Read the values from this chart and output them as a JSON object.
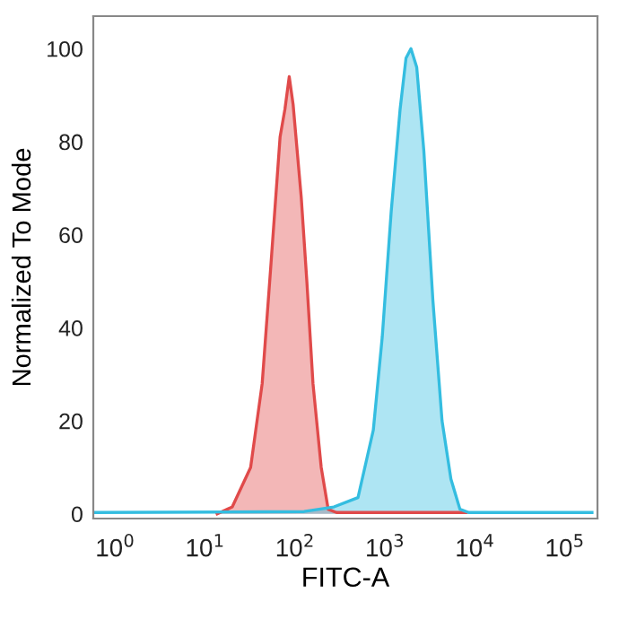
{
  "chart_data": {
    "type": "area",
    "xlabel": "FITC-A",
    "ylabel": "Normalized To Mode",
    "log": "x",
    "xlim": [
      0.57,
      230000
    ],
    "ylim": [
      -1,
      107
    ],
    "xticks": [
      {
        "value": 1,
        "label": "10$^{0}$"
      },
      {
        "value": 10,
        "label": "10$^{1}$"
      },
      {
        "value": 100,
        "label": "10$^{2}$"
      },
      {
        "value": 1000,
        "label": "10$^{3}$"
      },
      {
        "value": 10000,
        "label": "10$^{4}$"
      },
      {
        "value": 100000,
        "label": "10$^{5}$"
      }
    ],
    "yticks": [
      0,
      20,
      40,
      60,
      80,
      100
    ],
    "series": [
      {
        "color": "#e04a4a",
        "x": [
          13.6,
          20,
          32,
          43,
          54,
          68,
          77,
          86,
          95,
          117,
          135,
          158,
          195,
          233,
          288,
          8000
        ],
        "values": [
          0,
          1.5,
          10,
          28,
          54,
          81,
          87,
          94,
          88,
          68,
          50,
          28,
          10,
          1,
          0.3,
          0.3
        ]
      },
      {
        "color": "#34bde0",
        "x": [
          0.6,
          126,
          270,
          500,
          740,
          930,
          1170,
          1470,
          1710,
          1940,
          2250,
          2700,
          3400,
          4300,
          5400,
          6800,
          8500,
          200000
        ],
        "values": [
          0.3,
          0.5,
          1.5,
          3.5,
          18,
          38,
          65,
          87,
          98,
          100,
          96,
          78,
          46,
          20,
          7.5,
          1,
          0.3,
          0.3
        ]
      }
    ]
  }
}
